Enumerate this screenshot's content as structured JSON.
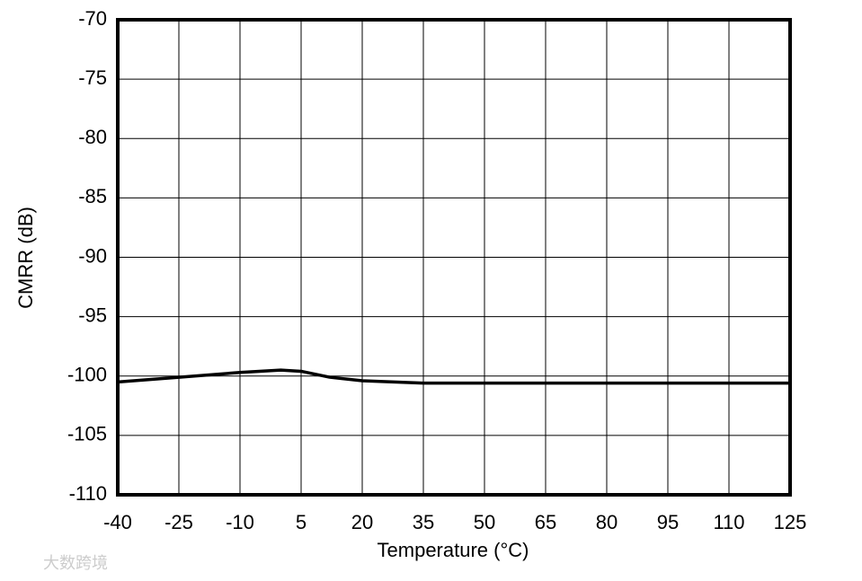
{
  "chart_data": {
    "type": "line",
    "x_label": "Temperature (°C)",
    "y_label": "CMRR (dB)",
    "series": [
      {
        "color": "#000000",
        "x": [
          -40,
          -25,
          -10,
          0,
          5,
          12,
          20,
          35,
          50,
          65,
          80,
          95,
          110,
          125
        ],
        "values": [
          -100.5,
          -100.1,
          -99.7,
          -99.5,
          -99.6,
          -100.1,
          -100.4,
          -100.6,
          -100.6,
          -100.6,
          -100.6,
          -100.6,
          -100.6,
          -100.6
        ]
      }
    ],
    "xlim": [
      -40,
      125
    ],
    "xticks": [
      -40,
      -25,
      -10,
      5,
      20,
      35,
      50,
      65,
      80,
      95,
      110,
      125
    ],
    "ylim": [
      -110,
      -70
    ],
    "yticks": [
      -110,
      -105,
      -100,
      -95,
      -90,
      -85,
      -80,
      -75,
      -70
    ],
    "grid": true
  },
  "watermark": "大数跨境"
}
